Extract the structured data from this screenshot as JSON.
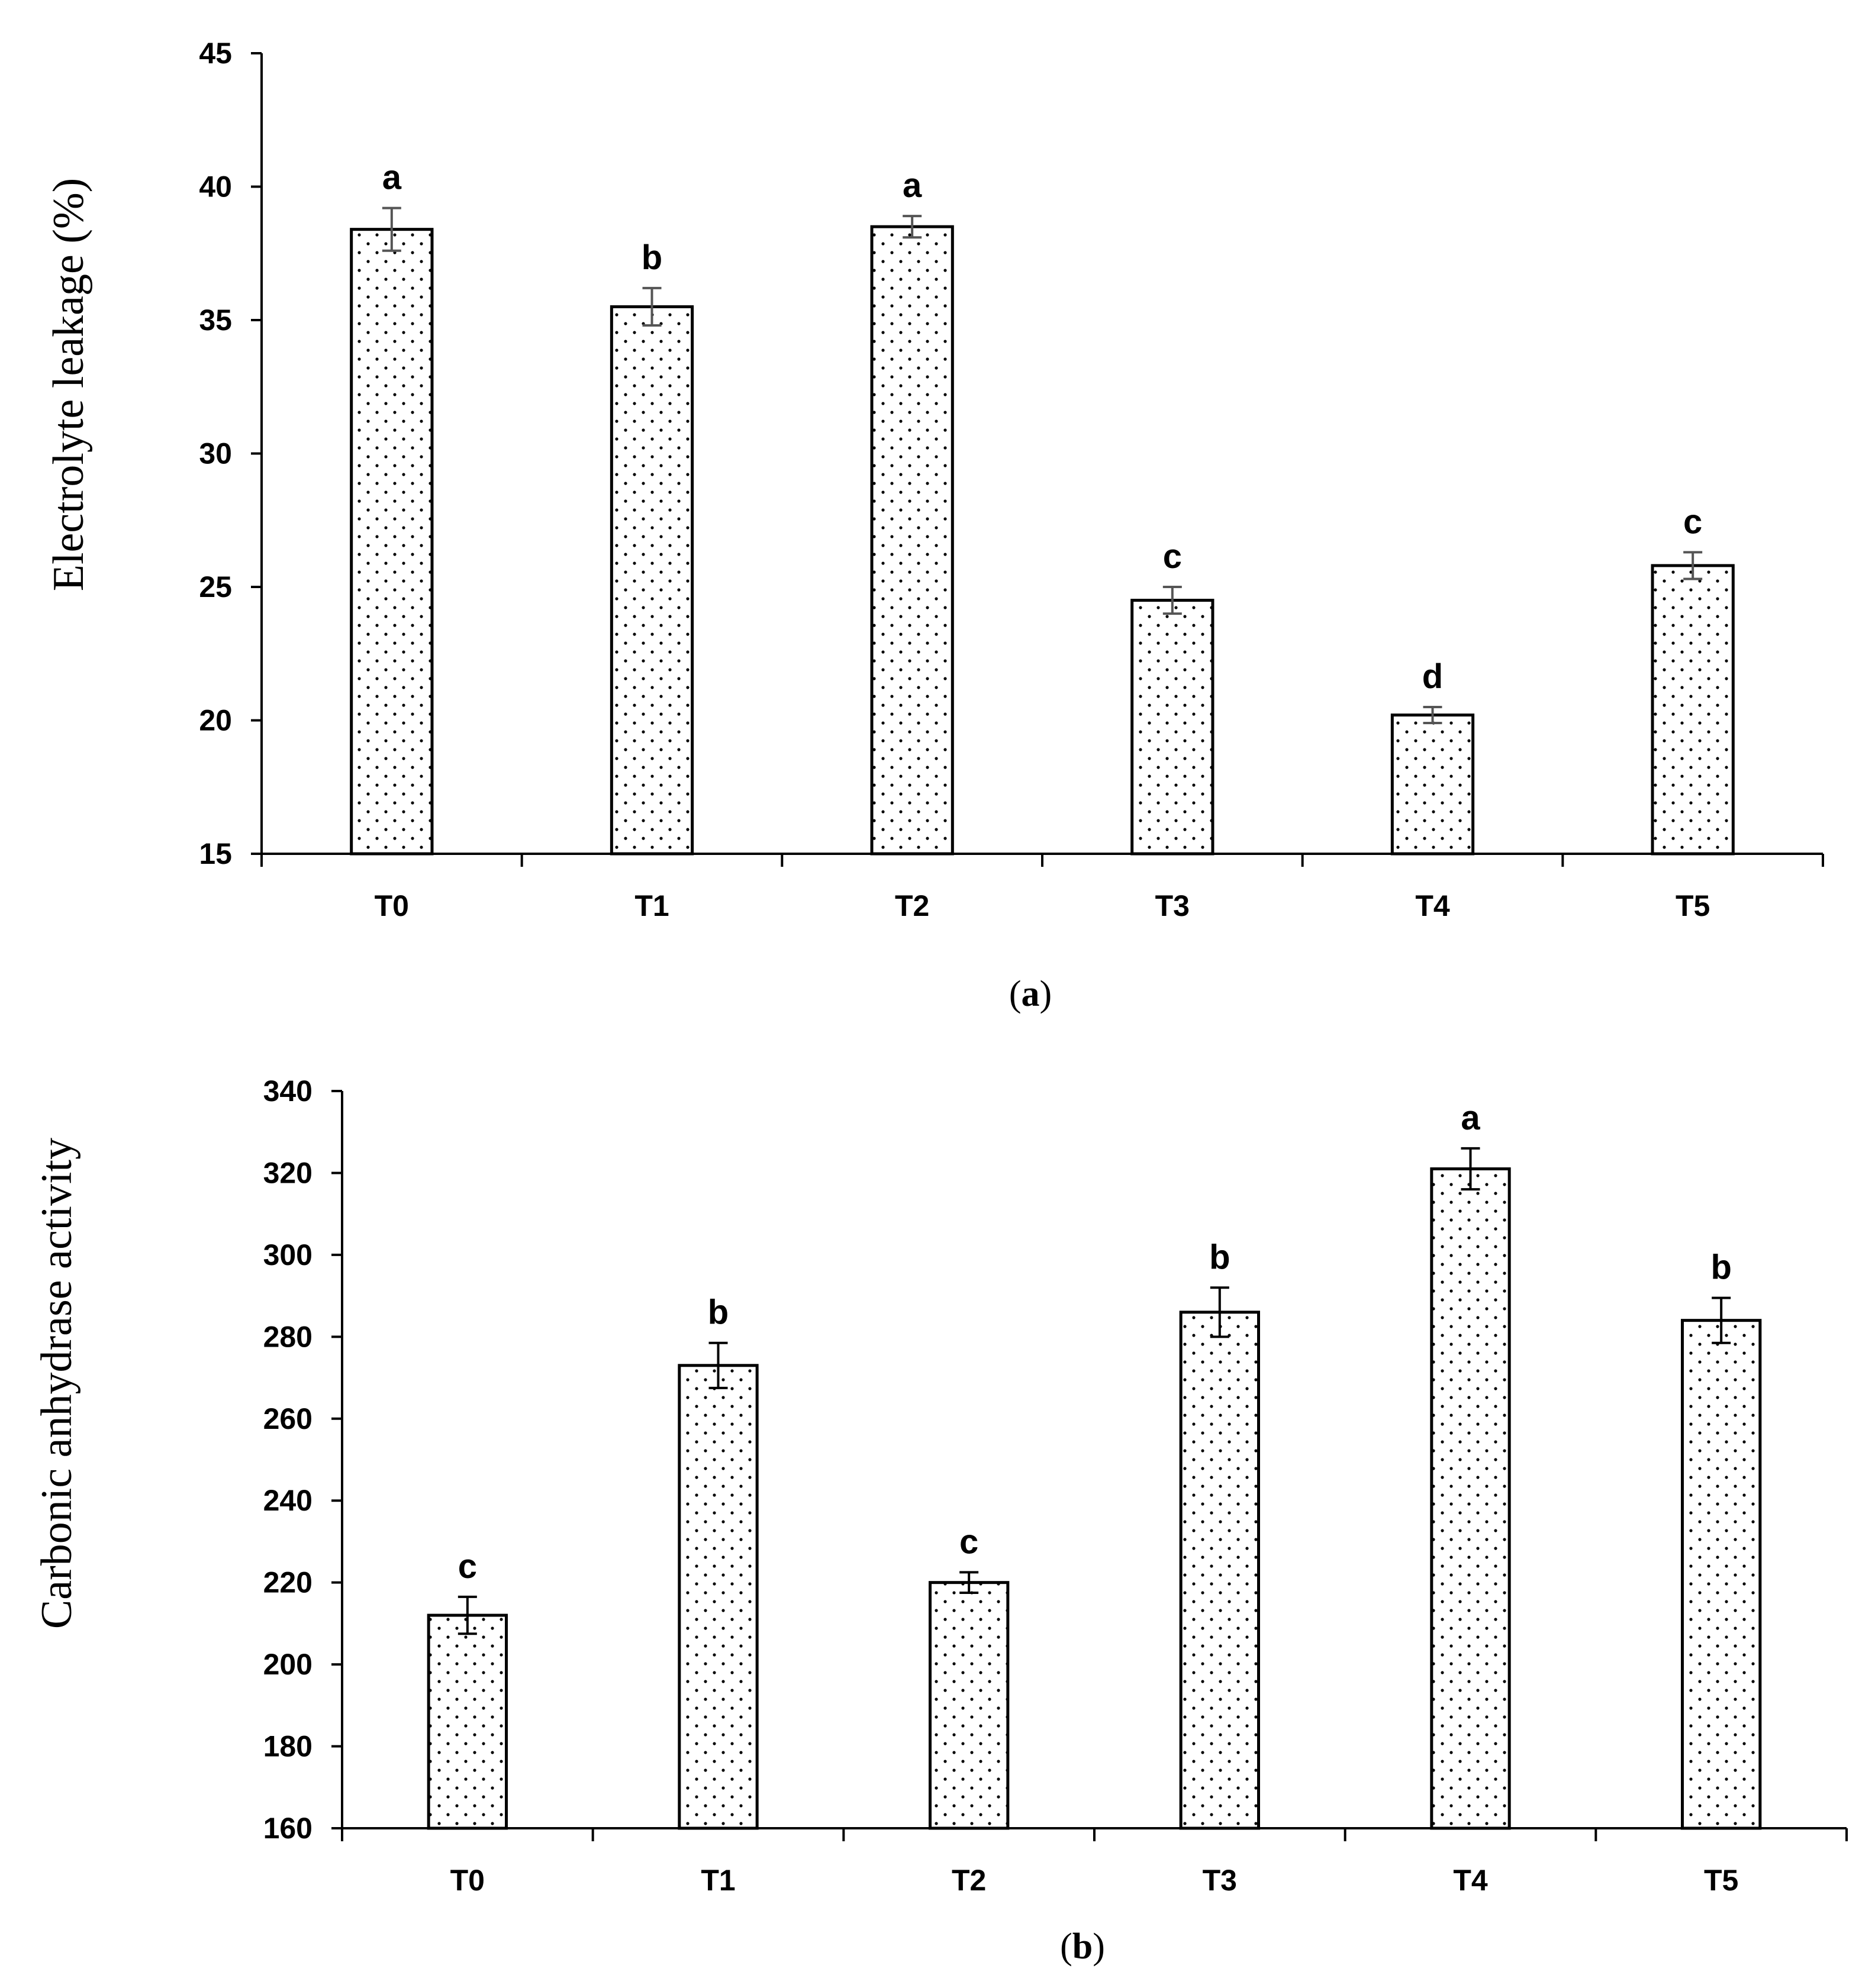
{
  "chart_data": [
    {
      "type": "bar",
      "panel_label": "a",
      "categories": [
        "T0",
        "T1",
        "T2",
        "T3",
        "T4",
        "T5"
      ],
      "values": [
        38.4,
        35.5,
        38.5,
        24.5,
        20.2,
        25.8
      ],
      "errors": [
        0.8,
        0.7,
        0.4,
        0.5,
        0.3,
        0.5
      ],
      "significance_letters": [
        "a",
        "b",
        "a",
        "c",
        "d",
        "c"
      ],
      "ylabel": "Electrolyte leakage (%)",
      "xlabel": "",
      "ylim": [
        15,
        45
      ],
      "yticks": [
        15,
        20,
        25,
        30,
        35,
        40,
        45
      ],
      "bar_pattern": "dotted",
      "error_bar_color": "#555555"
    },
    {
      "type": "bar",
      "panel_label": "b",
      "categories": [
        "T0",
        "T1",
        "T2",
        "T3",
        "T4",
        "T5"
      ],
      "values": [
        212,
        273,
        220,
        286,
        321,
        284
      ],
      "errors": [
        4.5,
        5.5,
        2.5,
        6,
        5,
        5.5
      ],
      "significance_letters": [
        "c",
        "b",
        "c",
        "b",
        "a",
        "b"
      ],
      "ylabel": "Carbonic anhydrase activity",
      "xlabel": "",
      "ylim": [
        160,
        340
      ],
      "yticks": [
        160,
        180,
        200,
        220,
        240,
        260,
        280,
        300,
        320,
        340
      ],
      "bar_pattern": "dotted",
      "error_bar_color": "#000000"
    }
  ]
}
